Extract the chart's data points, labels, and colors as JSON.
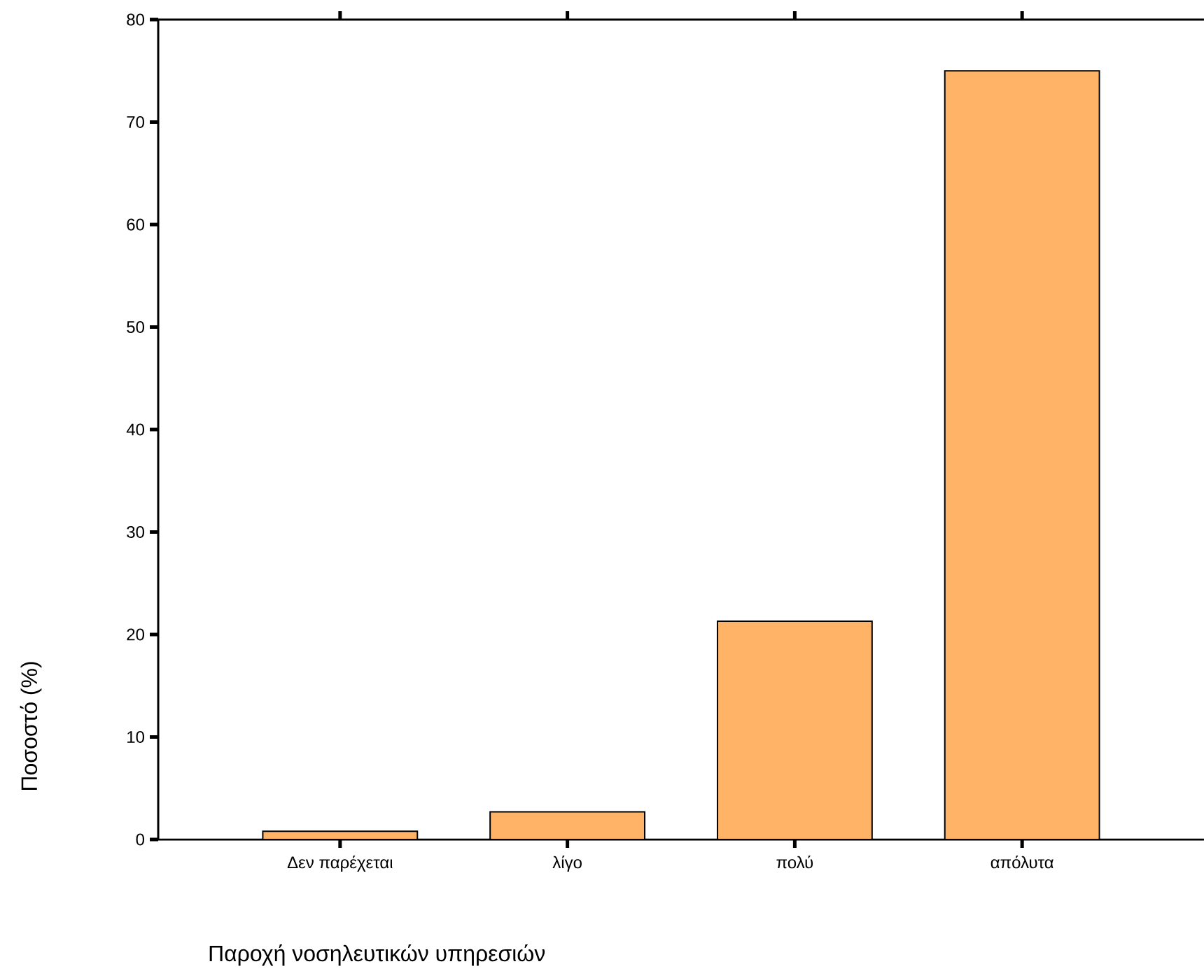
{
  "chart_data": {
    "type": "bar",
    "categories": [
      "Δεν παρέχεται",
      "λίγο",
      "πολύ",
      "απόλυτα"
    ],
    "values": [
      0.8,
      2.7,
      21.3,
      75.0
    ],
    "color": "#ffb366",
    "xlabel": "Παροχή νοσηλευτικών υπηρεσιών",
    "ylabel": "Ποσοστό (%)",
    "ylim": [
      0,
      80
    ],
    "yticks": [
      0,
      10,
      20,
      30,
      40,
      50,
      60,
      70,
      80
    ],
    "grid": false
  }
}
